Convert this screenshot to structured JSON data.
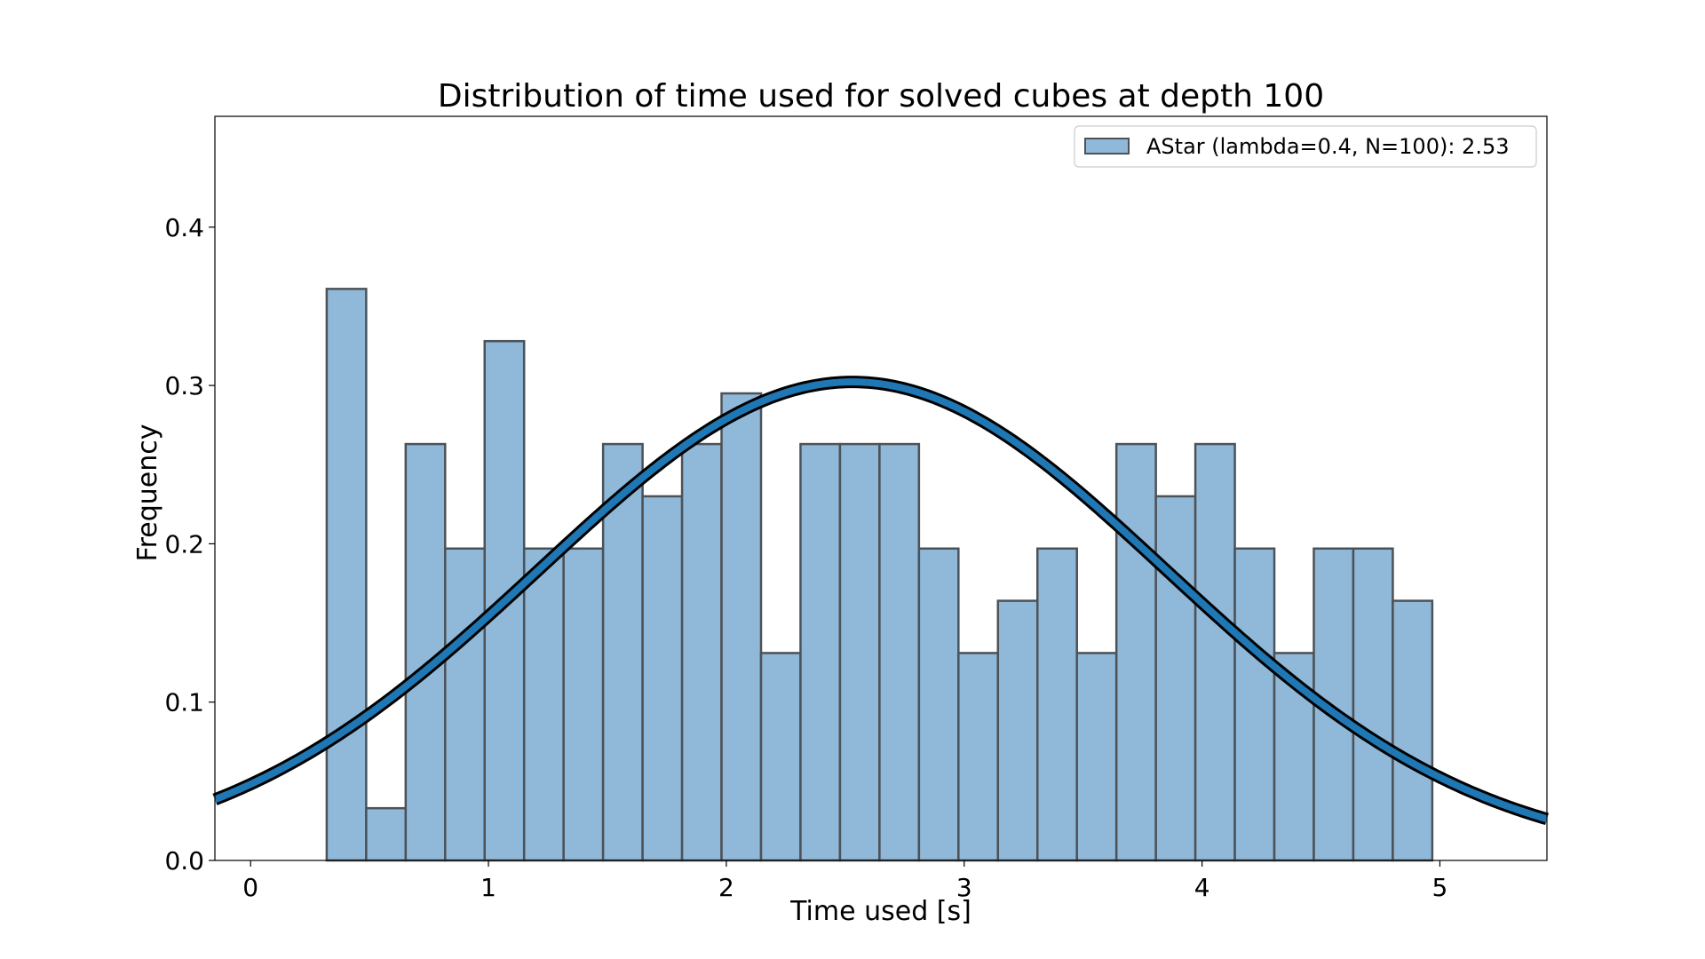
{
  "chart_data": {
    "type": "bar",
    "title": "Distribution of time used for solved cubes at depth 100",
    "xlabel": "Time used [s]",
    "ylabel": "Frequency",
    "xlim": [
      -0.15,
      5.45
    ],
    "ylim": [
      0.0,
      0.47
    ],
    "xticks": [
      0,
      1,
      2,
      3,
      4,
      5
    ],
    "xtick_labels": [
      "0",
      "1",
      "2",
      "3",
      "4",
      "5"
    ],
    "yticks": [
      0.0,
      0.1,
      0.2,
      0.3,
      0.4
    ],
    "ytick_labels": [
      "0.0",
      "0.1",
      "0.2",
      "0.3",
      "0.4"
    ],
    "legend_position": "top-right",
    "grid": false,
    "bar_color": "#8fb8d9",
    "bar_edge_color": "#4d5257",
    "curve_color": "#1f77b4",
    "curve_outline_color": "#000000",
    "histogram": {
      "name": "AStar (lambda=0.4, N=100): 2.53",
      "bin_edges": [
        0.32,
        0.486,
        0.652,
        0.818,
        0.984,
        1.15,
        1.316,
        1.482,
        1.648,
        1.814,
        1.98,
        2.146,
        2.312,
        2.478,
        2.644,
        2.81,
        2.976,
        3.142,
        3.308,
        3.474,
        3.64,
        3.806,
        3.972,
        4.138,
        4.304,
        4.47,
        4.636,
        4.802,
        4.968
      ],
      "values": [
        0.361,
        0.033,
        0.263,
        0.197,
        0.328,
        0.197,
        0.197,
        0.263,
        0.23,
        0.263,
        0.295,
        0.131,
        0.263,
        0.263,
        0.263,
        0.197,
        0.131,
        0.164,
        0.197,
        0.131,
        0.263,
        0.23,
        0.263,
        0.197,
        0.131,
        0.197,
        0.197,
        0.164
      ]
    },
    "normal_fit": {
      "mean": 2.53,
      "std": 1.32
    }
  }
}
